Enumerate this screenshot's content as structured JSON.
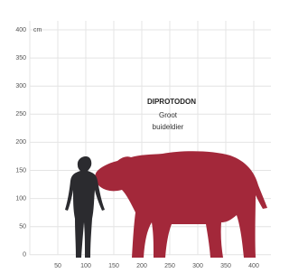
{
  "axes": {
    "y_labels": [
      400,
      350,
      300,
      250,
      200,
      150,
      100,
      50,
      0
    ],
    "y_unit": "cm",
    "x_labels": [
      50,
      100,
      150,
      200,
      250,
      300,
      350,
      400
    ]
  },
  "label": {
    "title": "DIPROTODON",
    "subtitle_lines": [
      "Groot",
      "buideldier"
    ]
  }
}
